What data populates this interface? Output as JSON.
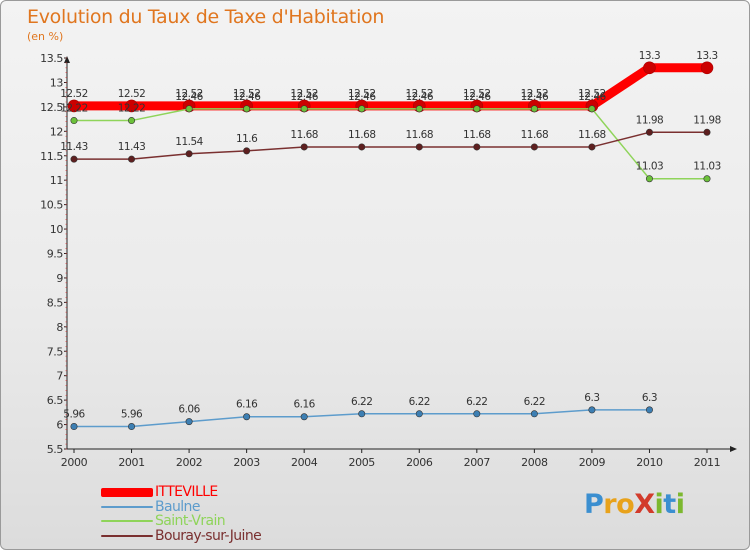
{
  "title": "Evolution du Taux de Taxe d'Habitation",
  "unit": "(en %)",
  "logo": {
    "letters": [
      {
        "ch": "P",
        "color": "#3b8fd0"
      },
      {
        "ch": "r",
        "color": "#e8a21b"
      },
      {
        "ch": "o",
        "color": "#e8a21b"
      },
      {
        "ch": "X",
        "color": "#d23b2b"
      },
      {
        "ch": "i",
        "color": "#7cb82f"
      },
      {
        "ch": "t",
        "color": "#3b8fd0"
      },
      {
        "ch": "i",
        "color": "#7cb82f"
      }
    ]
  },
  "chart_data": {
    "type": "line",
    "title": "Evolution du Taux de Taxe d'Habitation",
    "ylabel": "(en %)",
    "xlabel": "",
    "categories": [
      "2000",
      "2001",
      "2002",
      "2003",
      "2004",
      "2005",
      "2006",
      "2007",
      "2008",
      "2009",
      "2010",
      "2011"
    ],
    "ylim": [
      5.5,
      13.5
    ],
    "yticks": [
      "5.5",
      "6",
      "6.5",
      "7",
      "7.5",
      "8",
      "8.5",
      "9",
      "9.5",
      "10",
      "10.5",
      "11",
      "11.5",
      "12",
      "12.5",
      "13",
      "13.5"
    ],
    "grid": false,
    "legend_position": "bottom-left",
    "series": [
      {
        "name": "ITTEVILLE",
        "color": "#ff0000",
        "marker": "#cc0000",
        "width": 9,
        "values": [
          12.52,
          12.52,
          12.52,
          12.52,
          12.52,
          12.52,
          12.52,
          12.52,
          12.52,
          12.52,
          13.3,
          13.3
        ],
        "labels": [
          "12.52",
          "12.52",
          "12.52",
          "12.52",
          "12.52",
          "12.52",
          "12.52",
          "12.52",
          "12.52",
          "12.52",
          "13.3",
          "13.3"
        ]
      },
      {
        "name": "Baulne",
        "color": "#5d9ccc",
        "marker": "#3d7fb3",
        "width": 1.5,
        "values": [
          5.96,
          5.96,
          6.06,
          6.16,
          6.16,
          6.22,
          6.22,
          6.22,
          6.22,
          6.3,
          6.3,
          null
        ],
        "labels": [
          "5.96",
          "5.96",
          "6.06",
          "6.16",
          "6.16",
          "6.22",
          "6.22",
          "6.22",
          "6.22",
          "6.3",
          "6.3",
          null
        ]
      },
      {
        "name": "Saint-Vrain",
        "color": "#8fd45a",
        "marker": "#6cc13a",
        "width": 1.5,
        "values": [
          12.22,
          12.22,
          12.46,
          12.46,
          12.46,
          12.46,
          12.46,
          12.46,
          12.46,
          12.46,
          11.03,
          11.03
        ],
        "labels": [
          "12.22",
          "12.22",
          "12.46",
          "12.46",
          "12.46",
          "12.46",
          "12.46",
          "12.46",
          "12.46",
          "12.46",
          "11.03",
          "11.03"
        ]
      },
      {
        "name": "Bouray-sur-Juine",
        "color": "#7a3030",
        "marker": "#5e1f1f",
        "width": 1.5,
        "values": [
          11.43,
          11.43,
          11.54,
          11.6,
          11.68,
          11.68,
          11.68,
          11.68,
          11.68,
          11.68,
          11.98,
          11.98
        ],
        "labels": [
          "11.43",
          "11.43",
          "11.54",
          "11.6",
          "11.68",
          "11.68",
          "11.68",
          "11.68",
          "11.68",
          "11.68",
          "11.98",
          "11.98"
        ]
      }
    ]
  }
}
